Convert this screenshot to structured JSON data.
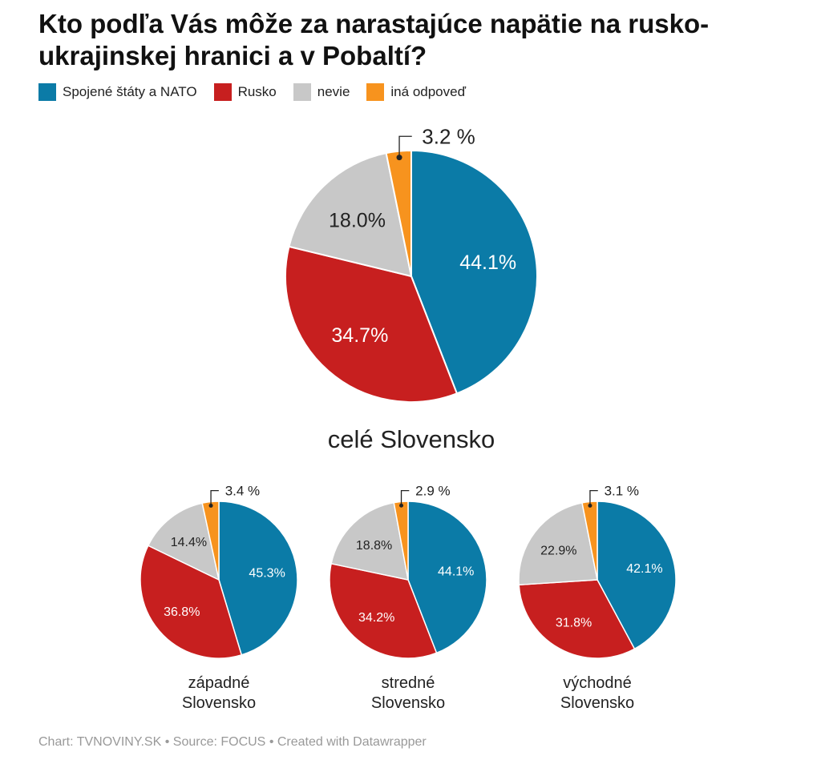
{
  "chart_data": {
    "type": "pie",
    "title": "Kto podľa Vás môže za narastajúce napätie na rusko-ukrajinskej hranici a v Pobaltí?",
    "legend_position": "top-left",
    "categories": [
      "Spojené štáty a NATO",
      "Rusko",
      "nevie",
      "iná odpoveď"
    ],
    "colors": [
      "#0b7ba7",
      "#c71f1f",
      "#c8c8c8",
      "#f7931e"
    ],
    "label_colors": [
      "#ffffff",
      "#ffffff",
      "#222222",
      "#222222"
    ],
    "series": [
      {
        "name": "celé Slovensko",
        "values": [
          44.1,
          34.7,
          18.0,
          3.2
        ],
        "value_labels": [
          "44.1%",
          "34.7%",
          "18.0%",
          "3.2 %"
        ]
      },
      {
        "name": "západné Slovensko",
        "values": [
          45.3,
          36.8,
          14.4,
          3.4
        ],
        "value_labels": [
          "45.3%",
          "36.8%",
          "14.4%",
          "3.4 %"
        ]
      },
      {
        "name": "stredné Slovensko",
        "values": [
          44.1,
          34.2,
          18.8,
          2.9
        ],
        "value_labels": [
          "44.1%",
          "34.2%",
          "18.8%",
          "2.9 %"
        ]
      },
      {
        "name": "východné Slovensko",
        "values": [
          42.1,
          31.8,
          22.9,
          3.1
        ],
        "value_labels": [
          "42.1%",
          "31.8%",
          "22.9%",
          "3.1 %"
        ]
      }
    ]
  },
  "footer": {
    "chart": "Chart: TVNOVINY.SK",
    "separator": "•",
    "source": "Source: FOCUS",
    "created": "Created with Datawrapper"
  }
}
